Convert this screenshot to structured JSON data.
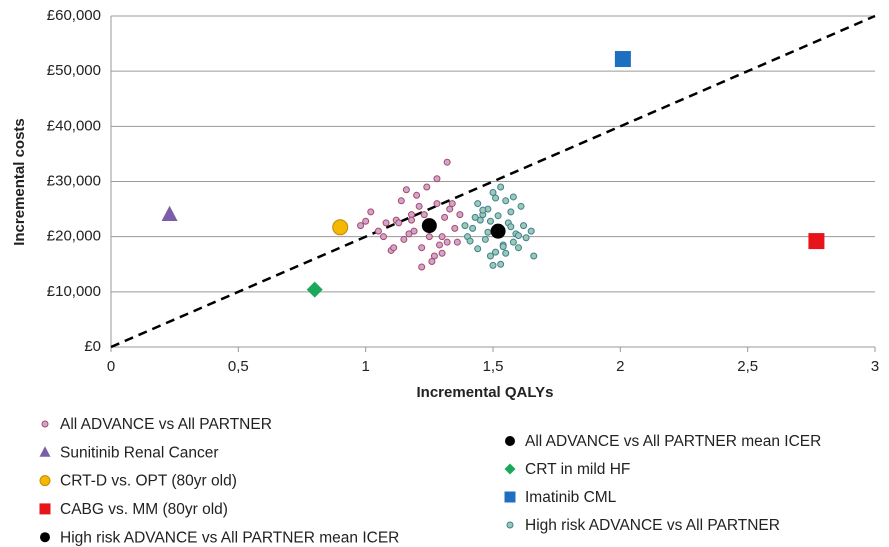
{
  "chart_data": {
    "type": "scatter",
    "xlabel": "Incremental QALYs",
    "ylabel": "Incremental costs",
    "xlim": [
      0,
      3
    ],
    "xticks": [
      0,
      {
        "value": 0.5,
        "label": "0,5"
      },
      1,
      {
        "value": 1.5,
        "label": "1,5"
      },
      2,
      {
        "value": 2.5,
        "label": "2,5"
      },
      3
    ],
    "ylim": [
      0,
      60000
    ],
    "yticks": [
      {
        "value": 0,
        "label": "£0"
      },
      {
        "value": 10000,
        "label": "£10,000"
      },
      {
        "value": 20000,
        "label": "£20,000"
      },
      {
        "value": 30000,
        "label": "£30,000"
      },
      {
        "value": 40000,
        "label": "£40,000"
      },
      {
        "value": 50000,
        "label": "£50,000"
      },
      {
        "value": 60000,
        "label": "£60,000"
      }
    ],
    "grid": true,
    "reference_line": {
      "x": [
        0,
        3
      ],
      "y": [
        0,
        60000
      ]
    },
    "series": [
      {
        "name": "All ADVANCE vs All PARTNER",
        "color": "#c9a6d8",
        "edgecolor": "#b0485a",
        "marker": "dot",
        "x": [
          1.25,
          1.18,
          1.3,
          1.12,
          1.22,
          1.28,
          1.35,
          1.08,
          1.15,
          1.2,
          1.27,
          1.33,
          1.05,
          1.1,
          1.24,
          1.31,
          1.17,
          1.21,
          1.29,
          1.36,
          1.02,
          0.98,
          1.14,
          1.26,
          1.19,
          1.32,
          1.23,
          1.11,
          1.16,
          1.34,
          1.07,
          1.28,
          1.22,
          1.13,
          1.3,
          1.0,
          1.25,
          1.18,
          1.37,
          1.32
        ],
        "y": [
          22000,
          24000,
          20000,
          23000,
          18000,
          26000,
          21500,
          22500,
          19500,
          27500,
          16500,
          25000,
          21000,
          17500,
          29000,
          23500,
          20500,
          25500,
          18500,
          19000,
          24500,
          22000,
          26500,
          15500,
          21000,
          33500,
          24000,
          18000,
          28500,
          26000,
          20000,
          30500,
          14500,
          22500,
          17000,
          22800,
          20000,
          23000,
          24000,
          19000
        ]
      },
      {
        "name": "Sunitinib Renal Cancer",
        "color": "#7b5ea7",
        "marker": "triangle",
        "x": [
          0.23
        ],
        "y": [
          24000
        ]
      },
      {
        "name": "CRT-D vs. OPT (80yr old)",
        "color": "#f5b700",
        "edgecolor": "#c08a00",
        "marker": "circle",
        "x": [
          0.9
        ],
        "y": [
          21700
        ]
      },
      {
        "name": "CABG vs. MM (80yr old)",
        "color": "#e8141c",
        "marker": "square",
        "x": [
          2.77
        ],
        "y": [
          19200
        ]
      },
      {
        "name": "High risk ADVANCE vs All PARTNER mean ICER",
        "color": "#000000",
        "marker": "circle",
        "x": [
          1.52
        ],
        "y": [
          21000
        ]
      },
      {
        "name": "All ADVANCE vs All PARTNER mean ICER",
        "color": "#000000",
        "marker": "circle",
        "x": [
          1.25
        ],
        "y": [
          22000
        ]
      },
      {
        "name": "CRT in mild HF",
        "color": "#1aa85a",
        "marker": "diamond",
        "x": [
          0.8
        ],
        "y": [
          10400
        ]
      },
      {
        "name": "Imatinib CML",
        "color": "#1f6fc0",
        "marker": "square",
        "x": [
          2.01
        ],
        "y": [
          52200
        ]
      },
      {
        "name": "High risk ADVANCE vs All PARTNER",
        "color": "#9cc9b0",
        "edgecolor": "#3d7f95",
        "marker": "dot",
        "x": [
          1.52,
          1.45,
          1.58,
          1.48,
          1.55,
          1.42,
          1.62,
          1.5,
          1.47,
          1.57,
          1.53,
          1.4,
          1.6,
          1.44,
          1.56,
          1.49,
          1.51,
          1.65,
          1.43,
          1.59,
          1.54,
          1.46,
          1.61,
          1.5,
          1.39,
          1.63,
          1.48,
          1.55,
          1.66,
          1.52,
          1.44,
          1.57,
          1.41,
          1.53,
          1.49,
          1.6,
          1.46,
          1.51,
          1.58,
          1.54
        ],
        "y": [
          21000,
          23000,
          19000,
          25000,
          17000,
          21500,
          22000,
          28000,
          19500,
          24500,
          15000,
          20000,
          18000,
          26000,
          22500,
          16500,
          27000,
          21000,
          23500,
          20500,
          18500,
          24000,
          25500,
          14800,
          22000,
          19800,
          20800,
          26500,
          16500,
          23800,
          17800,
          21800,
          19200,
          29000,
          22800,
          20200,
          24800,
          17200,
          27200,
          18200
        ]
      }
    ]
  }
}
